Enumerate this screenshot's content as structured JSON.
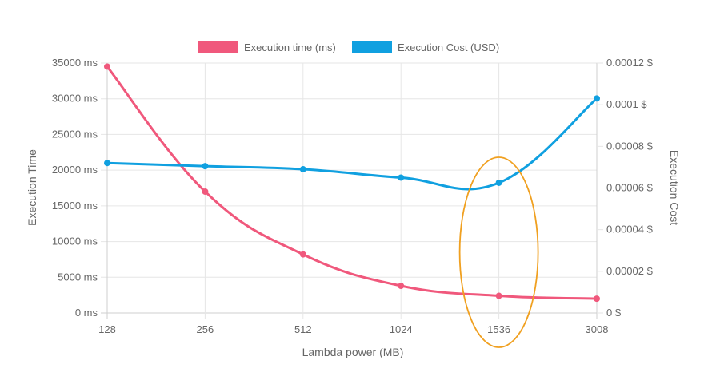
{
  "chart_data": {
    "type": "line",
    "title": "",
    "xlabel": "Lambda power (MB)",
    "ylabel_left": "Execution Time",
    "ylabel_right": "Execution Cost",
    "categories": [
      "128",
      "256",
      "512",
      "1024",
      "1536",
      "3008"
    ],
    "series": [
      {
        "name": "Execution time (ms)",
        "axis": "left",
        "color": "#f0587c",
        "values": [
          34500,
          17000,
          8200,
          3800,
          2400,
          2000
        ]
      },
      {
        "name": "Execution Cost (USD)",
        "axis": "right",
        "color": "#10a0e0",
        "values": [
          7.2e-05,
          7.05e-05,
          6.9e-05,
          6.5e-05,
          6.25e-05,
          0.000103
        ]
      }
    ],
    "y_left_ticks": [
      "0 ms",
      "5000 ms",
      "10000 ms",
      "15000 ms",
      "20000 ms",
      "25000 ms",
      "30000 ms",
      "35000 ms"
    ],
    "y_left_range": [
      0,
      35000
    ],
    "y_right_ticks": [
      "0 $",
      "0.00002 $",
      "0.00004 $",
      "0.00006 $",
      "0.00008 $",
      "0.0001 $",
      "0.00012 $"
    ],
    "y_right_range": [
      0,
      0.00012
    ],
    "grid": true,
    "legend_position": "top-center",
    "annotation": {
      "shape": "ellipse",
      "color": "#f0a020",
      "highlight_category": "1536"
    }
  }
}
